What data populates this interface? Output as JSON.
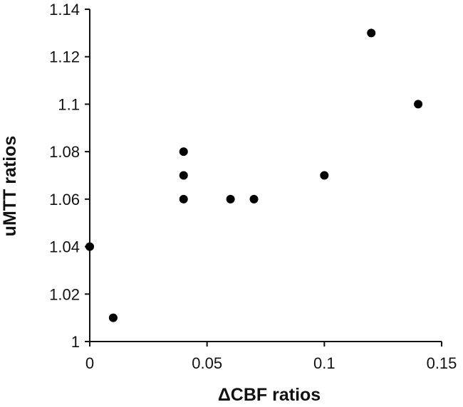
{
  "chart_data": {
    "type": "scatter",
    "xlabel": "ΔCBF ratios",
    "ylabel": "uMTT ratios",
    "xlim": [
      0,
      0.15
    ],
    "ylim": [
      1,
      1.14
    ],
    "x_ticks": [
      0,
      0.05,
      0.1,
      0.15
    ],
    "x_tick_labels": [
      "0",
      "0.05",
      "0.1",
      "0.15"
    ],
    "y_ticks": [
      1,
      1.02,
      1.04,
      1.06,
      1.08,
      1.1,
      1.12,
      1.14
    ],
    "y_tick_labels": [
      "1",
      "1.02",
      "1.04",
      "1.06",
      "1.08",
      "1.1",
      "1.12",
      "1.14"
    ],
    "grid": false,
    "legend": "none",
    "marker_color": "#000000",
    "points": [
      {
        "x": 0.0,
        "y": 1.04
      },
      {
        "x": 0.01,
        "y": 1.01
      },
      {
        "x": 0.04,
        "y": 1.08
      },
      {
        "x": 0.04,
        "y": 1.07
      },
      {
        "x": 0.04,
        "y": 1.06
      },
      {
        "x": 0.06,
        "y": 1.06
      },
      {
        "x": 0.07,
        "y": 1.06
      },
      {
        "x": 0.1,
        "y": 1.07
      },
      {
        "x": 0.12,
        "y": 1.13
      },
      {
        "x": 0.14,
        "y": 1.1
      }
    ]
  }
}
